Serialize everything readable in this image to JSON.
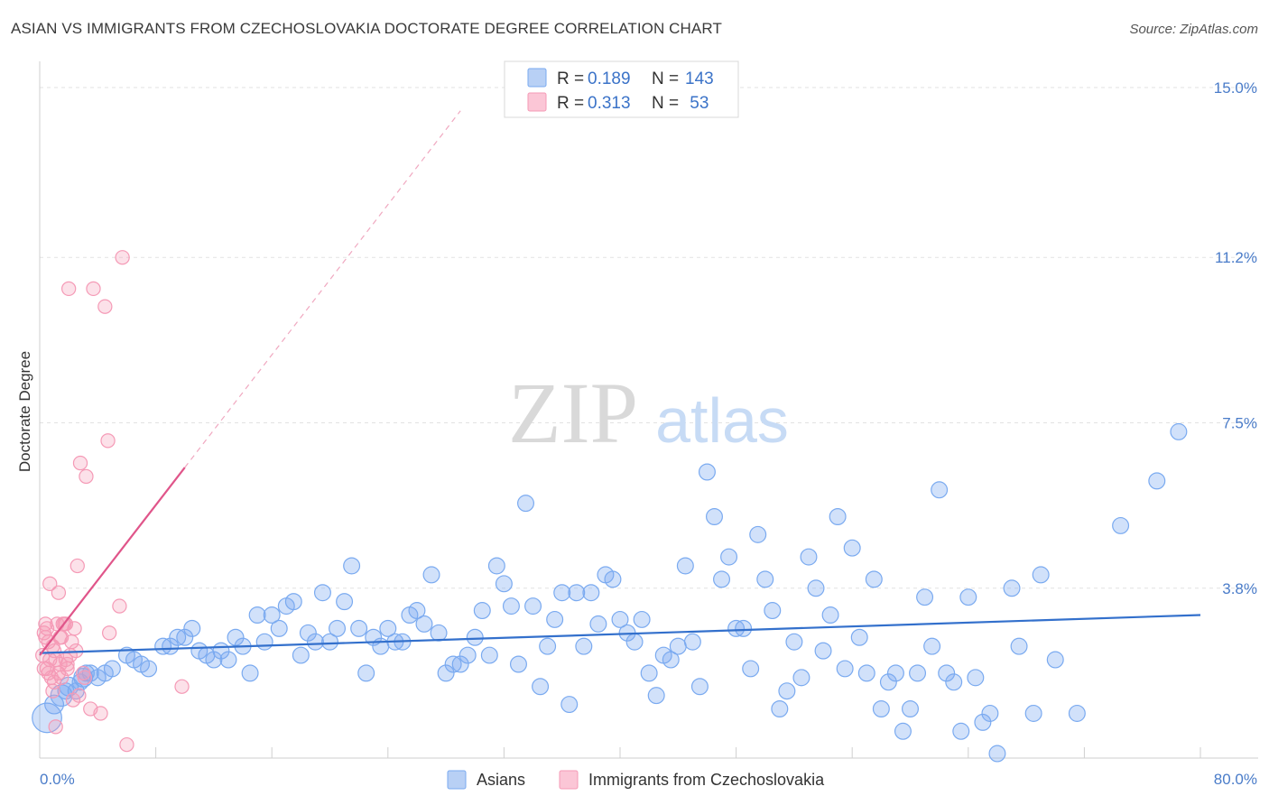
{
  "chart_data": {
    "type": "scatter",
    "title": "ASIAN VS IMMIGRANTS FROM CZECHOSLOVAKIA DOCTORATE DEGREE CORRELATION CHART",
    "source": "Source: ZipAtlas.com",
    "xlabel": "",
    "ylabel": "Doctorate Degree",
    "xlim": [
      0,
      80
    ],
    "ylim": [
      0,
      15.0
    ],
    "x_tick_labels": [
      "0.0%",
      "80.0%"
    ],
    "y_ticks": [
      {
        "value": 3.8,
        "label": "3.8%"
      },
      {
        "value": 7.5,
        "label": "7.5%"
      },
      {
        "value": 11.2,
        "label": "11.2%"
      },
      {
        "value": 15.0,
        "label": "15.0%"
      }
    ],
    "watermark": {
      "zip": "ZIP",
      "atlas": "atlas"
    },
    "legend": [
      {
        "r_label": "R = ",
        "r": "0.189",
        "n_label": "N = ",
        "n": "143"
      },
      {
        "r_label": "R = ",
        "r": "0.313",
        "n_label": "N = ",
        "n": " 53"
      }
    ],
    "series": [
      {
        "name": "Asians",
        "color": "#7aaaf0",
        "trend": {
          "x0": 0,
          "y0": 2.35,
          "x1": 80,
          "y1": 3.2,
          "color": "#3370cc"
        },
        "points": [
          [
            0.5,
            0.9,
            22
          ],
          [
            1.0,
            1.2,
            14
          ],
          [
            1.5,
            1.4,
            16
          ],
          [
            2.0,
            1.6,
            14
          ],
          [
            2.5,
            1.5,
            12
          ],
          [
            3.0,
            1.8,
            14
          ],
          [
            3.5,
            1.9,
            12
          ],
          [
            4.0,
            1.8,
            12
          ],
          [
            5.0,
            2.0,
            12
          ],
          [
            6.0,
            2.3,
            12
          ],
          [
            6.5,
            2.2,
            12
          ],
          [
            7.0,
            2.1,
            12
          ],
          [
            7.5,
            2.0,
            12
          ],
          [
            8.5,
            2.5,
            12
          ],
          [
            9.0,
            2.5,
            12
          ],
          [
            9.5,
            2.7,
            12
          ],
          [
            10.0,
            2.7,
            12
          ],
          [
            10.5,
            2.9,
            12
          ],
          [
            11.0,
            2.4,
            12
          ],
          [
            11.5,
            2.3,
            12
          ],
          [
            12.0,
            2.2,
            12
          ],
          [
            12.5,
            2.4,
            12
          ],
          [
            13.0,
            2.2,
            12
          ],
          [
            13.5,
            2.7,
            12
          ],
          [
            14.0,
            2.5,
            12
          ],
          [
            14.5,
            1.9,
            12
          ],
          [
            15.0,
            3.2,
            12
          ],
          [
            15.5,
            2.6,
            12
          ],
          [
            16.0,
            3.2,
            12
          ],
          [
            16.5,
            2.9,
            12
          ],
          [
            17.0,
            3.4,
            12
          ],
          [
            17.5,
            3.5,
            12
          ],
          [
            18.0,
            2.3,
            12
          ],
          [
            18.5,
            2.8,
            12
          ],
          [
            19.0,
            2.6,
            12
          ],
          [
            19.5,
            3.7,
            12
          ],
          [
            20.0,
            2.6,
            12
          ],
          [
            20.5,
            2.9,
            12
          ],
          [
            21.0,
            3.5,
            12
          ],
          [
            21.5,
            4.3,
            12
          ],
          [
            22.0,
            2.9,
            12
          ],
          [
            22.5,
            1.9,
            12
          ],
          [
            23.0,
            2.7,
            12
          ],
          [
            23.5,
            2.5,
            12
          ],
          [
            24.0,
            2.9,
            12
          ],
          [
            24.5,
            2.6,
            12
          ],
          [
            25.0,
            2.6,
            12
          ],
          [
            25.5,
            3.2,
            12
          ],
          [
            26.0,
            3.3,
            12
          ],
          [
            26.5,
            3.0,
            12
          ],
          [
            27.0,
            4.1,
            12
          ],
          [
            27.5,
            2.8,
            12
          ],
          [
            28.0,
            1.9,
            12
          ],
          [
            28.5,
            2.1,
            12
          ],
          [
            29.0,
            2.1,
            12
          ],
          [
            29.5,
            2.3,
            12
          ],
          [
            30.0,
            2.7,
            12
          ],
          [
            30.5,
            3.3,
            12
          ],
          [
            31.0,
            2.3,
            12
          ],
          [
            31.5,
            4.3,
            12
          ],
          [
            32.0,
            3.9,
            12
          ],
          [
            32.5,
            3.4,
            12
          ],
          [
            33.0,
            2.1,
            12
          ],
          [
            33.5,
            5.7,
            12
          ],
          [
            34.0,
            3.4,
            12
          ],
          [
            34.5,
            1.6,
            12
          ],
          [
            35.0,
            2.5,
            12
          ],
          [
            35.5,
            3.1,
            12
          ],
          [
            36.0,
            3.7,
            12
          ],
          [
            36.5,
            1.2,
            12
          ],
          [
            37.0,
            3.7,
            12
          ],
          [
            37.5,
            2.5,
            12
          ],
          [
            38.0,
            3.7,
            12
          ],
          [
            38.5,
            3.0,
            12
          ],
          [
            39.0,
            4.1,
            12
          ],
          [
            39.5,
            4.0,
            12
          ],
          [
            40.0,
            3.1,
            12
          ],
          [
            40.5,
            2.8,
            12
          ],
          [
            41.0,
            2.6,
            12
          ],
          [
            41.5,
            3.1,
            12
          ],
          [
            42.0,
            1.9,
            12
          ],
          [
            42.5,
            1.4,
            12
          ],
          [
            43.0,
            2.3,
            12
          ],
          [
            43.5,
            2.2,
            12
          ],
          [
            44.0,
            2.5,
            12
          ],
          [
            44.5,
            4.3,
            12
          ],
          [
            45.0,
            2.6,
            12
          ],
          [
            45.5,
            1.6,
            12
          ],
          [
            46.0,
            6.4,
            12
          ],
          [
            46.5,
            5.4,
            12
          ],
          [
            47.0,
            4.0,
            12
          ],
          [
            47.5,
            4.5,
            12
          ],
          [
            48.0,
            2.9,
            12
          ],
          [
            48.5,
            2.9,
            12
          ],
          [
            49.0,
            2.0,
            12
          ],
          [
            49.5,
            5.0,
            12
          ],
          [
            50.0,
            4.0,
            12
          ],
          [
            50.5,
            3.3,
            12
          ],
          [
            51.0,
            1.1,
            12
          ],
          [
            51.5,
            1.5,
            12
          ],
          [
            52.0,
            2.6,
            12
          ],
          [
            52.5,
            1.8,
            12
          ],
          [
            53.0,
            4.5,
            12
          ],
          [
            53.5,
            3.8,
            12
          ],
          [
            54.0,
            2.4,
            12
          ],
          [
            54.5,
            3.2,
            12
          ],
          [
            55.0,
            5.4,
            12
          ],
          [
            55.5,
            2.0,
            12
          ],
          [
            56.0,
            4.7,
            12
          ],
          [
            56.5,
            2.7,
            12
          ],
          [
            57.0,
            1.9,
            12
          ],
          [
            57.5,
            4.0,
            12
          ],
          [
            58.0,
            1.1,
            12
          ],
          [
            58.5,
            1.7,
            12
          ],
          [
            59.0,
            1.9,
            12
          ],
          [
            59.5,
            0.6,
            12
          ],
          [
            60.0,
            1.1,
            12
          ],
          [
            60.5,
            1.9,
            12
          ],
          [
            61.0,
            3.6,
            12
          ],
          [
            61.5,
            2.5,
            12
          ],
          [
            62.0,
            6.0,
            12
          ],
          [
            62.5,
            1.9,
            12
          ],
          [
            63.0,
            1.7,
            12
          ],
          [
            63.5,
            0.6,
            12
          ],
          [
            64.0,
            3.6,
            12
          ],
          [
            64.5,
            1.8,
            12
          ],
          [
            65.0,
            0.8,
            12
          ],
          [
            65.5,
            1.0,
            12
          ],
          [
            66.0,
            0.1,
            12
          ],
          [
            67.0,
            3.8,
            12
          ],
          [
            67.5,
            2.5,
            12
          ],
          [
            68.5,
            1.0,
            12
          ],
          [
            69.0,
            4.1,
            12
          ],
          [
            70.0,
            2.2,
            12
          ],
          [
            71.5,
            1.0,
            12
          ],
          [
            74.5,
            5.2,
            12
          ],
          [
            77.0,
            6.2,
            12
          ],
          [
            78.5,
            7.3,
            12
          ],
          [
            1.8,
            1.5,
            12
          ],
          [
            2.8,
            1.7,
            12
          ],
          [
            3.2,
            1.9,
            12
          ],
          [
            4.5,
            1.9,
            12
          ]
        ]
      },
      {
        "name": "Immigrants from Czechoslovakia",
        "color": "#f59ab6",
        "trend": {
          "x0": 0,
          "y0": 2.3,
          "x1": 10,
          "y1": 6.5,
          "dash_to_x": 29,
          "color": "#e0558a"
        },
        "points": [
          [
            0.2,
            2.3,
            12
          ],
          [
            0.3,
            2.8,
            12
          ],
          [
            0.4,
            3.0,
            12
          ],
          [
            0.5,
            2.0,
            12
          ],
          [
            0.6,
            2.6,
            12
          ],
          [
            0.7,
            2.2,
            12
          ],
          [
            0.8,
            1.8,
            12
          ],
          [
            0.9,
            2.5,
            12
          ],
          [
            1.0,
            2.4,
            12
          ],
          [
            1.1,
            2.2,
            12
          ],
          [
            1.2,
            3.0,
            12
          ],
          [
            1.3,
            1.9,
            12
          ],
          [
            1.4,
            2.1,
            12
          ],
          [
            1.5,
            2.7,
            12
          ],
          [
            1.6,
            3.0,
            12
          ],
          [
            1.7,
            3.0,
            12
          ],
          [
            1.8,
            2.2,
            12
          ],
          [
            1.9,
            2.0,
            12
          ],
          [
            2.0,
            10.5,
            12
          ],
          [
            2.2,
            2.6,
            12
          ],
          [
            2.4,
            2.9,
            12
          ],
          [
            2.5,
            2.4,
            12
          ],
          [
            2.6,
            4.3,
            12
          ],
          [
            2.8,
            6.6,
            12
          ],
          [
            3.0,
            1.9,
            12
          ],
          [
            3.2,
            6.3,
            12
          ],
          [
            3.5,
            1.1,
            12
          ],
          [
            3.7,
            10.5,
            12
          ],
          [
            4.2,
            1.0,
            12
          ],
          [
            4.5,
            10.1,
            12
          ],
          [
            4.7,
            7.1,
            12
          ],
          [
            4.8,
            2.8,
            12
          ],
          [
            5.5,
            3.4,
            12
          ],
          [
            5.7,
            11.2,
            12
          ],
          [
            6.0,
            0.3,
            12
          ],
          [
            9.8,
            1.6,
            12
          ],
          [
            0.4,
            2.7,
            12
          ],
          [
            0.7,
            3.9,
            12
          ],
          [
            1.0,
            1.7,
            12
          ],
          [
            1.3,
            3.7,
            12
          ],
          [
            2.1,
            2.3,
            12
          ],
          [
            2.3,
            1.3,
            12
          ],
          [
            0.9,
            1.5,
            12
          ],
          [
            1.5,
            1.8,
            12
          ],
          [
            0.6,
            1.9,
            12
          ],
          [
            1.9,
            2.1,
            12
          ],
          [
            1.4,
            2.7,
            12
          ],
          [
            0.3,
            2.0,
            12
          ],
          [
            2.7,
            1.4,
            12
          ],
          [
            3.1,
            1.8,
            12
          ],
          [
            1.1,
            0.7,
            12
          ],
          [
            0.5,
            2.9,
            12
          ],
          [
            1.8,
            3.0,
            12
          ]
        ]
      }
    ]
  }
}
